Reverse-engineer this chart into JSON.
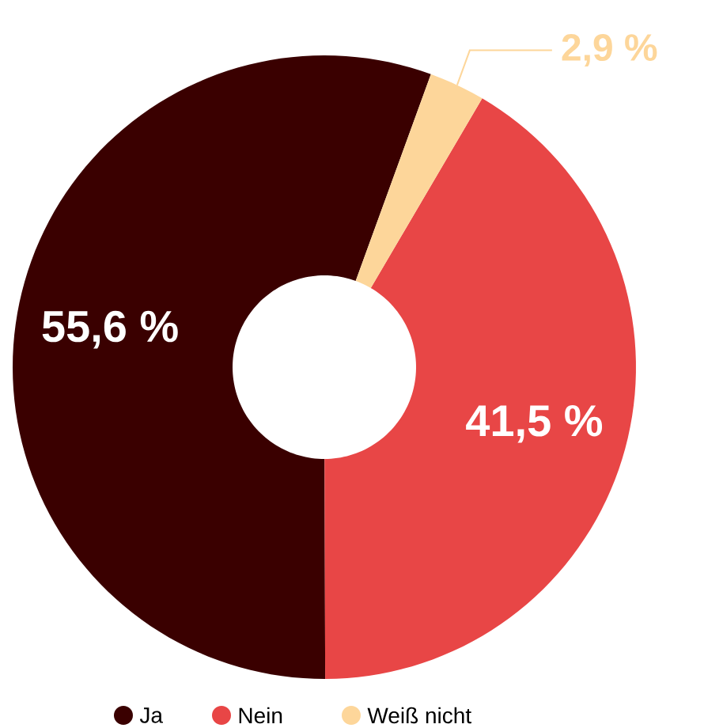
{
  "chart_data": {
    "type": "donut",
    "categories": [
      "Ja",
      "Nein",
      "Weiß nicht"
    ],
    "values": [
      55.6,
      41.5,
      2.9
    ],
    "colors": [
      "#3a0000",
      "#e84646",
      "#fdd69a"
    ],
    "value_labels": [
      "55,6 %",
      "41,5 %",
      "2,9 %"
    ],
    "legend": "bottom"
  }
}
